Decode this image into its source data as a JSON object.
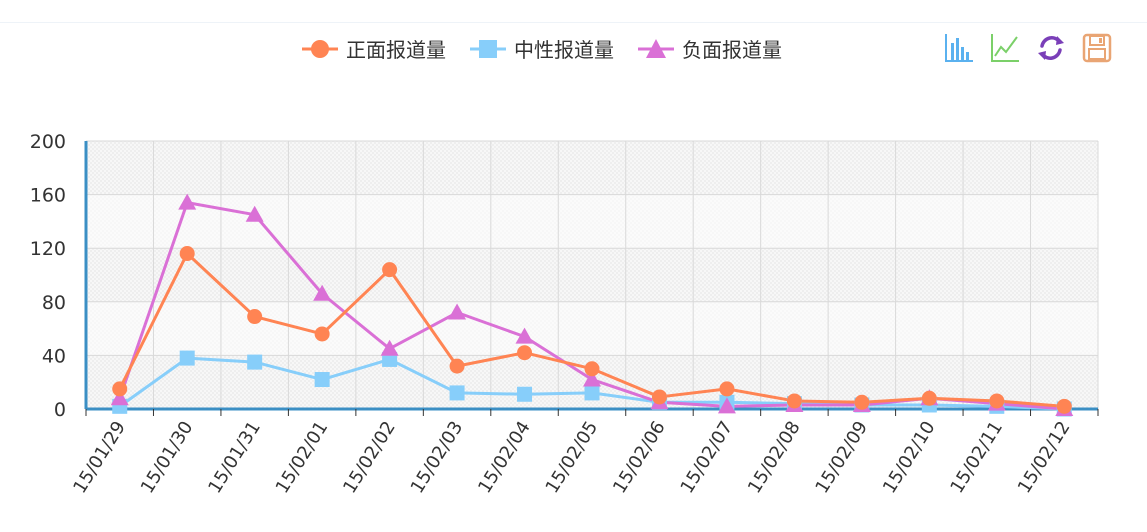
{
  "colors": {
    "positive": "#ff8453",
    "neutral": "#87cefa",
    "negative": "#da70d6",
    "axis": "#3b8fc4",
    "grid": "#d9d9d9",
    "plot_bg": "#f5f5f5",
    "tool_bar": "#5ab1ef",
    "tool_line": "#7bd069",
    "tool_restore": "#7a3fb8",
    "tool_save": "#e9a574"
  },
  "legend": [
    {
      "label": "正面报道量",
      "marker": "circle"
    },
    {
      "label": "中性报道量",
      "marker": "square"
    },
    {
      "label": "负面报道量",
      "marker": "triangle"
    }
  ],
  "toolbox": [
    {
      "icon": "bar-chart-icon"
    },
    {
      "icon": "line-chart-icon"
    },
    {
      "icon": "restore-icon"
    },
    {
      "icon": "save-icon"
    }
  ],
  "chart_data": {
    "type": "line",
    "x": [
      "15/01/29",
      "15/01/30",
      "15/01/31",
      "15/02/01",
      "15/02/02",
      "15/02/03",
      "15/02/04",
      "15/02/05",
      "15/02/06",
      "15/02/07",
      "15/02/08",
      "15/02/09",
      "15/02/10",
      "15/02/11",
      "15/02/12"
    ],
    "series": [
      {
        "name": "正面报道量",
        "values": [
          15,
          116,
          69,
          56,
          104,
          32,
          42,
          30,
          9,
          15,
          6,
          5,
          8,
          6,
          2
        ]
      },
      {
        "name": "中性报道量",
        "values": [
          2,
          38,
          35,
          22,
          37,
          12,
          11,
          12,
          5,
          5,
          4,
          3,
          3,
          2,
          0
        ]
      },
      {
        "name": "负面报道量",
        "values": [
          8,
          154,
          145,
          86,
          45,
          72,
          54,
          22,
          5,
          2,
          3,
          3,
          8,
          4,
          0
        ]
      }
    ],
    "yticks": [
      0,
      40,
      80,
      120,
      160,
      200
    ],
    "ylim": [
      0,
      200
    ],
    "grid": true
  }
}
